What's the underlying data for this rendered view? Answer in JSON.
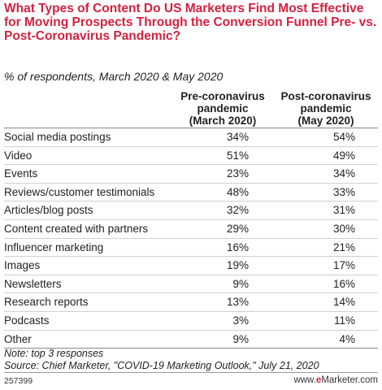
{
  "title": "What Types of Content Do US Marketers Find Most Effective for Moving Prospects Through the Conversion Funnel Pre- vs. Post-Coronavirus Pandemic?",
  "subtitle": "% of respondents, March 2020 & May 2020",
  "chart_data": {
    "type": "table",
    "columns": [
      "Pre-coronavirus pandemic (March 2020)",
      "Post-coronavirus pandemic (May 2020)"
    ],
    "categories": [
      "Social media postings",
      "Video",
      "Events",
      "Reviews/customer testimonials",
      "Articles/blog posts",
      "Content created with partners",
      "Influencer marketing",
      "Images",
      "Newsletters",
      "Research reports",
      "Podcasts",
      "Other"
    ],
    "series": [
      {
        "name": "Pre-coronavirus pandemic (March 2020)",
        "values": [
          "34%",
          "51%",
          "23%",
          "48%",
          "32%",
          "29%",
          "16%",
          "19%",
          "9%",
          "13%",
          "3%",
          "9%"
        ]
      },
      {
        "name": "Post-coronavirus pandemic (May 2020)",
        "values": [
          "54%",
          "49%",
          "34%",
          "33%",
          "31%",
          "30%",
          "21%",
          "17%",
          "16%",
          "14%",
          "11%",
          "4%"
        ]
      }
    ]
  },
  "notes": {
    "note": "Note: top 3 responses",
    "source": "Source: Chief Marketer, \"COVID-19 Marketing Outlook,\" July 21, 2020"
  },
  "footer": {
    "id": "257399",
    "brand_prefix": "www.",
    "brand_e": "e",
    "brand_suffix": "Marketer.com"
  },
  "colors": {
    "title": "#d5213f",
    "brand": "#d5213f"
  }
}
